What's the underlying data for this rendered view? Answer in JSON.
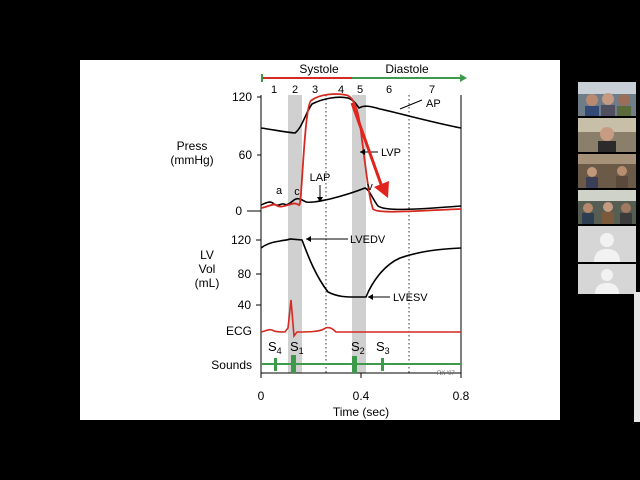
{
  "slide": {
    "phase_labels": {
      "systole": "Systole",
      "diastole": "Diastole"
    },
    "phase_numbers": [
      "1",
      "2",
      "3",
      "4",
      "5",
      "6",
      "7"
    ],
    "pressure_axis": {
      "title_line1": "Press",
      "title_line2": "(mmHg)",
      "ticks": [
        "120",
        "60",
        "0"
      ]
    },
    "volume_axis": {
      "title_line1": "LV",
      "title_line2": "Vol",
      "title_line3": "(mL)",
      "ticks": [
        "120",
        "80",
        "40"
      ]
    },
    "ecg_label": "ECG",
    "sounds_label": "Sounds",
    "sound_labels": {
      "s4": "S",
      "s4_sub": "4",
      "s1": "S",
      "s1_sub": "1",
      "s2": "S",
      "s2_sub": "2",
      "s3": "S",
      "s3_sub": "3"
    },
    "wave_labels": {
      "a": "a",
      "c": "c",
      "v": "v"
    },
    "annotations": {
      "ap": "AP",
      "lap": "LAP",
      "lvp": "LVP",
      "lvedv": "LVEDV",
      "lvesv": "LVESV"
    },
    "x_axis": {
      "title": "Time (sec)",
      "ticks": [
        "0",
        "0.4",
        "0.8"
      ]
    },
    "credit": "RK '07"
  },
  "gallery": {
    "participants": [
      {
        "tile": "video-tile"
      },
      {
        "tile": "video-tile"
      },
      {
        "tile": "video-tile"
      },
      {
        "tile": "video-tile"
      },
      {
        "tile": "avatar-placeholder"
      },
      {
        "tile": "avatar-placeholder"
      }
    ]
  },
  "colors": {
    "red": "#d42a22",
    "green": "#3c9a4a",
    "gray_band": "#d0d0d0"
  }
}
